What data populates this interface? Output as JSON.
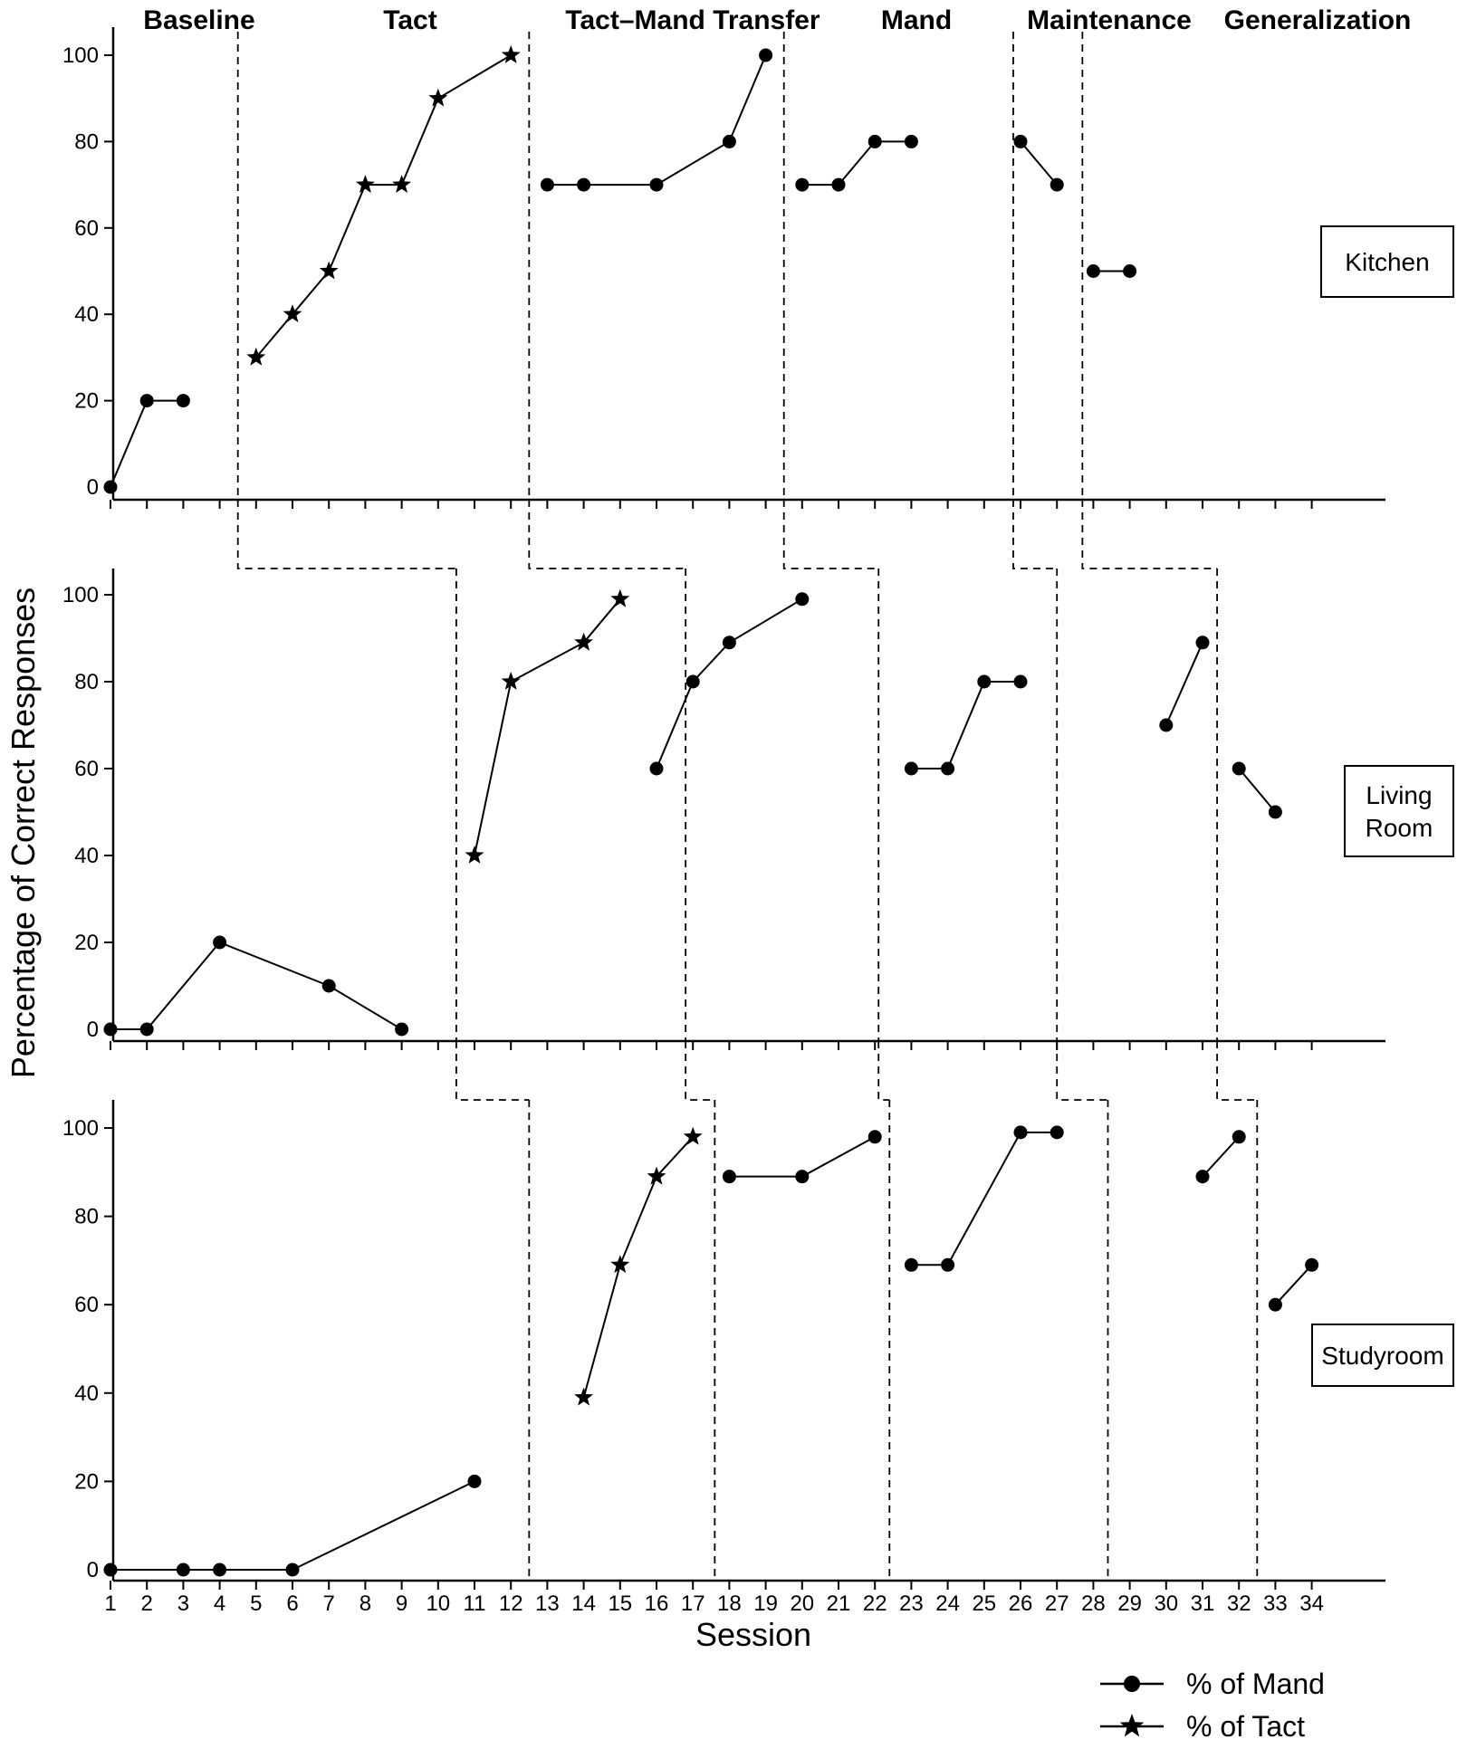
{
  "chart_data": {
    "type": "line",
    "ylabel": "Percentage of Correct Responses",
    "xlabel": "Session",
    "x_ticks": [
      1,
      2,
      3,
      4,
      5,
      6,
      7,
      8,
      9,
      10,
      11,
      12,
      13,
      14,
      15,
      16,
      17,
      18,
      19,
      20,
      21,
      22,
      23,
      24,
      25,
      26,
      27,
      28,
      29,
      30,
      31,
      32,
      33,
      34
    ],
    "y_ticks": [
      0,
      20,
      40,
      60,
      80,
      100
    ],
    "ylim": [
      0,
      105
    ],
    "xlim": [
      0.5,
      34.5
    ],
    "phases": [
      "Baseline",
      "Tact",
      "Tact–Mand Transfer",
      "Mand",
      "Maintenance",
      "Generalization"
    ],
    "legend": [
      {
        "label": "% of Mand",
        "marker": "circle"
      },
      {
        "label": "% of Tact",
        "marker": "star"
      }
    ],
    "panels": [
      {
        "setting": [
          "Kitchen"
        ],
        "phase_changes": [
          4.5,
          12.5,
          19.5,
          25.8,
          27.7
        ],
        "segments": [
          {
            "marker": "circle",
            "points": [
              [
                1,
                0
              ],
              [
                2,
                20
              ],
              [
                3,
                20
              ]
            ]
          },
          {
            "marker": "star",
            "points": [
              [
                5,
                30
              ],
              [
                6,
                40
              ],
              [
                7,
                50
              ],
              [
                8,
                70
              ],
              [
                9,
                70
              ],
              [
                10,
                90
              ],
              [
                12,
                100
              ]
            ]
          },
          {
            "marker": "circle",
            "points": [
              [
                13,
                70
              ],
              [
                14,
                70
              ],
              [
                16,
                70
              ],
              [
                18,
                80
              ],
              [
                19,
                100
              ]
            ]
          },
          {
            "marker": "circle",
            "points": [
              [
                20,
                70
              ],
              [
                21,
                70
              ],
              [
                22,
                80
              ],
              [
                23,
                80
              ]
            ]
          },
          {
            "marker": "circle",
            "points": [
              [
                26,
                80
              ],
              [
                27,
                70
              ]
            ]
          },
          {
            "marker": "circle",
            "points": [
              [
                28,
                50
              ],
              [
                29,
                50
              ]
            ]
          }
        ]
      },
      {
        "setting": [
          "Living",
          "Room"
        ],
        "phase_changes": [
          10.5,
          16.8,
          22.1,
          27.0,
          31.4
        ],
        "segments": [
          {
            "marker": "circle",
            "points": [
              [
                1,
                0
              ],
              [
                2,
                0
              ],
              [
                4,
                20
              ],
              [
                7,
                10
              ],
              [
                9,
                0
              ]
            ]
          },
          {
            "marker": "star",
            "points": [
              [
                11,
                40
              ],
              [
                12,
                80
              ],
              [
                14,
                89
              ],
              [
                15,
                99
              ]
            ]
          },
          {
            "marker": "circle",
            "points": [
              [
                16,
                60
              ],
              [
                17,
                80
              ],
              [
                18,
                89
              ],
              [
                20,
                99
              ]
            ]
          },
          {
            "marker": "circle",
            "points": [
              [
                23,
                60
              ],
              [
                24,
                60
              ],
              [
                25,
                80
              ],
              [
                26,
                80
              ]
            ]
          },
          {
            "marker": "circle",
            "points": [
              [
                30,
                70
              ],
              [
                31,
                89
              ]
            ]
          },
          {
            "marker": "circle",
            "points": [
              [
                32,
                60
              ],
              [
                33,
                50
              ]
            ]
          }
        ]
      },
      {
        "setting": [
          "Studyroom"
        ],
        "phase_changes": [
          12.5,
          17.6,
          22.4,
          28.4,
          32.5
        ],
        "segments": [
          {
            "marker": "circle",
            "points": [
              [
                1,
                0
              ],
              [
                3,
                0
              ],
              [
                4,
                0
              ],
              [
                6,
                0
              ],
              [
                11,
                20
              ]
            ]
          },
          {
            "marker": "star",
            "points": [
              [
                14,
                39
              ],
              [
                15,
                69
              ],
              [
                16,
                89
              ],
              [
                17,
                98
              ]
            ]
          },
          {
            "marker": "circle",
            "points": [
              [
                18,
                89
              ],
              [
                20,
                89
              ],
              [
                22,
                98
              ]
            ]
          },
          {
            "marker": "circle",
            "points": [
              [
                23,
                69
              ],
              [
                24,
                69
              ],
              [
                26,
                99
              ],
              [
                27,
                99
              ]
            ]
          },
          {
            "marker": "circle",
            "points": [
              [
                31,
                89
              ],
              [
                32,
                98
              ]
            ]
          },
          {
            "marker": "circle",
            "points": [
              [
                33,
                60
              ],
              [
                34,
                69
              ]
            ]
          }
        ]
      }
    ]
  }
}
